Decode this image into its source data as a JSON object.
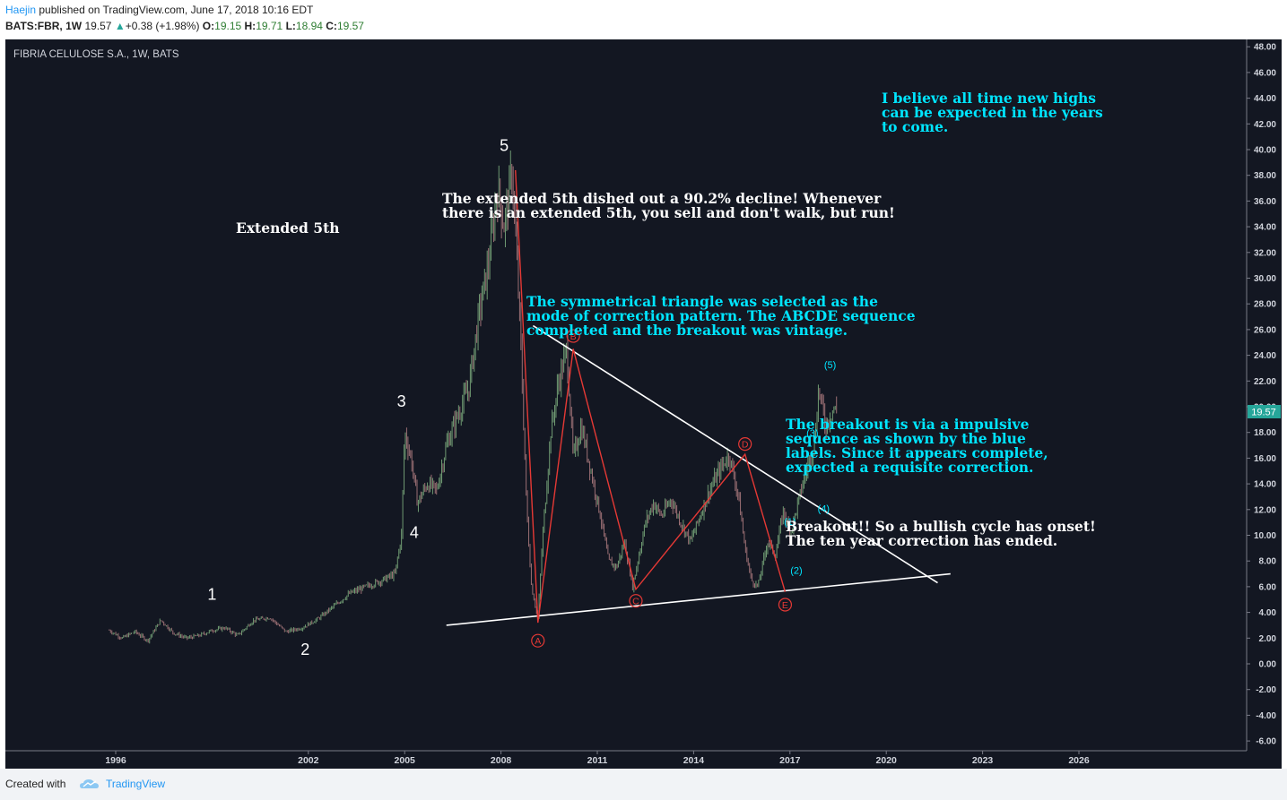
{
  "header": {
    "author": "Haejin",
    "published": "published on TradingView.com, June 17, 2018 10:16 EDT",
    "symbol": "BATS:FBR, 1W",
    "last": "19.57",
    "change": "+0.38 (+1.98%)",
    "o_label": "O:",
    "o_val": "19.15",
    "h_label": "H:",
    "h_val": "19.71",
    "l_label": "L:",
    "l_val": "18.94",
    "c_label": "C:",
    "c_val": "19.57"
  },
  "footer": {
    "created": "Created with",
    "brand": "TradingView"
  },
  "colors": {
    "background": "#131722",
    "candle": "#7a8a78",
    "wave_red": "#e53935",
    "trend_white": "#ffffff",
    "label_cyan": "#00e5ff",
    "price_tag": "#26a69a"
  },
  "chart_data": {
    "type": "line",
    "title": "FIBRIA CELULOSE S.A., 1W, BATS",
    "x_ticks": [
      "1996",
      "2002",
      "2005",
      "2008",
      "2011",
      "2014",
      "2017",
      "2020",
      "2023",
      "2026"
    ],
    "y_ticks": [
      "48.00",
      "46.00",
      "44.00",
      "42.00",
      "40.00",
      "38.00",
      "36.00",
      "34.00",
      "32.00",
      "30.00",
      "28.00",
      "26.00",
      "24.00",
      "22.00",
      "20.00",
      "18.00",
      "16.00",
      "14.00",
      "12.00",
      "10.00",
      "8.00",
      "6.00",
      "4.00",
      "2.00",
      "0.00",
      "-2.00",
      "-4.00",
      "-6.00"
    ],
    "ylim": [
      -6.5,
      48.5
    ],
    "last_price_tag": "19.57",
    "series": [
      {
        "x": [
          1995.8,
          1996.2,
          1996.6,
          1997.0,
          1997.4,
          1997.8,
          1998.2,
          1998.6,
          1999.0,
          1999.4,
          1999.8,
          2000.3,
          2000.8,
          2001.3,
          2001.8,
          2002.3,
          2002.8,
          2003.3,
          2003.8,
          2004.3,
          2004.7,
          2004.9,
          2005.0,
          2005.2,
          2005.4,
          2005.7,
          2006.0,
          2006.3,
          2006.6,
          2007.0,
          2007.3,
          2007.6,
          2007.9,
          2008.1,
          2008.35,
          2008.6,
          2008.8,
          2008.95,
          2009.15,
          2009.3,
          2009.55,
          2009.8,
          2010.05,
          2010.25,
          2010.5,
          2010.8,
          2011.1,
          2011.35,
          2011.6,
          2011.85,
          2012.1,
          2012.3,
          2012.5,
          2012.75,
          2013.0,
          2013.3,
          2013.6,
          2013.9,
          2014.2,
          2014.5,
          2014.8,
          2015.1,
          2015.4,
          2015.6,
          2015.8,
          2016.0,
          2016.3,
          2016.55,
          2016.8,
          2017.0,
          2017.3,
          2017.55,
          2017.75,
          2017.9,
          2018.0,
          2018.1,
          2018.25,
          2018.35,
          2018.45
        ],
        "y": [
          2.6,
          2.0,
          2.5,
          1.8,
          3.4,
          2.4,
          2.0,
          2.2,
          2.6,
          2.8,
          2.2,
          3.4,
          3.6,
          2.5,
          2.8,
          3.5,
          4.5,
          5.5,
          6.0,
          6.5,
          7.0,
          10.0,
          18.0,
          16.0,
          12.5,
          14.0,
          13.5,
          17.0,
          19.0,
          21.5,
          27.0,
          31.0,
          37.0,
          34.0,
          38.5,
          26.0,
          12.0,
          6.0,
          3.5,
          10.0,
          18.0,
          22.0,
          24.5,
          16.0,
          18.5,
          15.0,
          11.5,
          8.0,
          7.5,
          9.5,
          6.0,
          8.5,
          11.0,
          12.5,
          11.5,
          12.8,
          11.0,
          9.5,
          11.5,
          13.5,
          15.0,
          16.3,
          13.0,
          9.0,
          6.5,
          6.0,
          9.5,
          8.5,
          12.0,
          10.0,
          13.0,
          15.5,
          17.0,
          21.5,
          20.0,
          18.5,
          19.3,
          19.9,
          19.6
        ]
      }
    ],
    "wave_labels": [
      {
        "text": "1",
        "x": 1999.0,
        "y": 5.0
      },
      {
        "text": "2",
        "x": 2001.9,
        "y": 0.7
      },
      {
        "text": "3",
        "x": 2004.9,
        "y": 20.0
      },
      {
        "text": "4",
        "x": 2005.3,
        "y": 9.8
      },
      {
        "text": "5",
        "x": 2008.1,
        "y": 39.9
      }
    ],
    "abcde_points": [
      {
        "label": "A",
        "x": 2009.15,
        "y": 3.2,
        "lx": 2009.15,
        "ly": 1.8
      },
      {
        "label": "B",
        "x": 2010.25,
        "y": 24.5,
        "lx": 2010.25,
        "ly": 25.5
      },
      {
        "label": "C",
        "x": 2012.2,
        "y": 5.8,
        "lx": 2012.2,
        "ly": 4.9
      },
      {
        "label": "D",
        "x": 2015.6,
        "y": 16.3,
        "lx": 2015.6,
        "ly": 17.1
      },
      {
        "label": "E",
        "x": 2016.85,
        "y": 5.6,
        "lx": 2016.85,
        "ly": 4.6
      }
    ],
    "impulse_labels": [
      {
        "text": "(1)",
        "x": 2017.0,
        "y": 10.8
      },
      {
        "text": "(2)",
        "x": 2017.2,
        "y": 7.0
      },
      {
        "text": "(3)",
        "x": 2017.7,
        "y": 17.7
      },
      {
        "text": "(4)",
        "x": 2018.05,
        "y": 11.8
      },
      {
        "text": "(5)",
        "x": 2018.25,
        "y": 23.0
      }
    ],
    "trendlines": [
      {
        "x1": 2006.3,
        "y1": 3.0,
        "x2": 2022.0,
        "y2": 7.0
      },
      {
        "x1": 2009.0,
        "y1": 26.3,
        "x2": 2021.6,
        "y2": 6.3
      }
    ],
    "annotations": {
      "extended": "Extended 5th",
      "decline": "The extended 5th dished out a 90.2% decline! Whenever\nthere is an extended 5th, you sell and don't walk, but run!",
      "triangle": "The symmetrical triangle was selected as the\nmode of correction pattern. The ABCDE sequence\ncompleted and the breakout was vintage.",
      "highs": "I believe all time new highs\ncan be expected in the years\nto come.",
      "impulse": "The breakout is via a impulsive\nsequence as shown by the blue\nlabels. Since it appears complete,\nexpected a requisite correction.",
      "breakout": "Breakout!! So a bullish cycle has onset!\nThe ten year correction has ended."
    }
  }
}
